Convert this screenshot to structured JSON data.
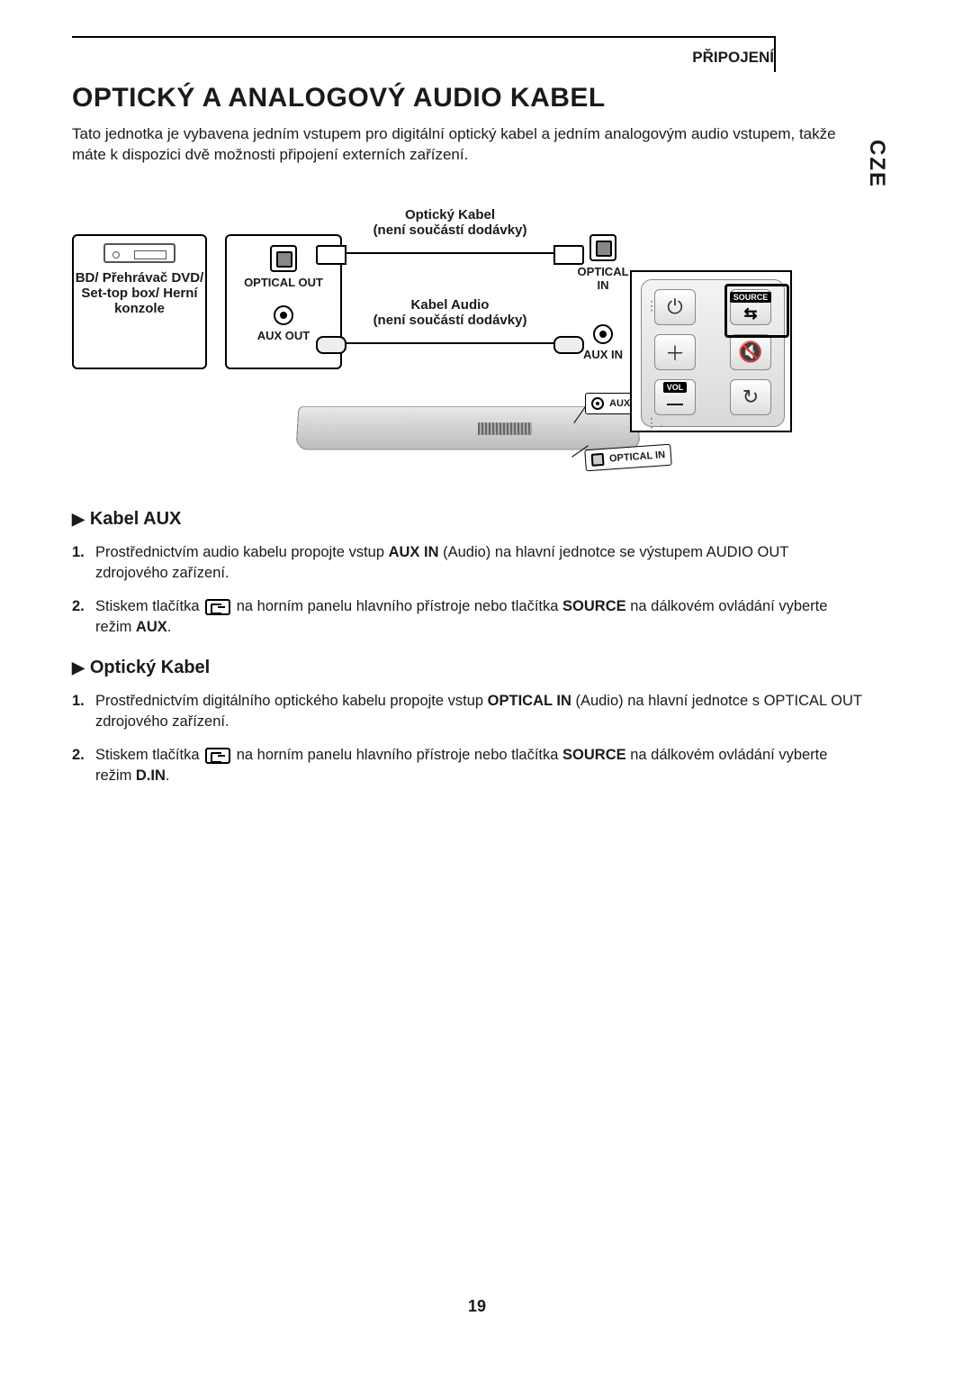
{
  "header": {
    "section_label": "PŘIPOJENÍ",
    "side_tab": "CZE"
  },
  "title": "OPTICKÝ A ANALOGOVÝ AUDIO KABEL",
  "intro": "Tato jednotka je vybavena jedním vstupem pro digitální optický kabel a jedním analogovým audio vstupem, takže máte k dispozici dvě možnosti připojení externích zařízení.",
  "diagram": {
    "source_device": "BD/ Přehrávač DVD/ Set-top box/ Herní konzole",
    "optical_out": "OPTICAL OUT",
    "aux_out": "AUX OUT",
    "optical_in": "OPTICAL IN",
    "aux_in": "AUX IN",
    "cable_optical_l1": "Optický Kabel",
    "cable_optical_l2": "(není součástí dodávky)",
    "cable_audio_l1": "Kabel Audio",
    "cable_audio_l2": "(není součástí dodávky)",
    "callout_aux": "AUX IN",
    "callout_opt": "OPTICAL IN",
    "remote": {
      "source_label": "SOURCE",
      "vol_label": "VOL"
    }
  },
  "section_aux": {
    "title": "Kabel AUX",
    "step1_a": "Prostřednictvím audio kabelu propojte vstup ",
    "step1_b": "AUX IN",
    "step1_c": " (Audio) na hlavní jednotce se výstupem AUDIO OUT zdrojového zařízení.",
    "step2_a": "Stiskem tlačítka ",
    "step2_b": " na horním panelu hlavního přístroje nebo tlačítka ",
    "step2_c": "SOURCE",
    "step2_d": " na dálkovém ovládání vyberte režim ",
    "step2_e": "AUX",
    "step2_f": "."
  },
  "section_opt": {
    "title": "Optický Kabel",
    "step1_a": "Prostřednictvím digitálního optického kabelu propojte vstup ",
    "step1_b": "OPTICAL IN",
    "step1_c": " (Audio) na hlavní jednotce s OPTICAL OUT zdrojového zařízení.",
    "step2_a": "Stiskem tlačítka ",
    "step2_b": " na horním panelu hlavního přístroje nebo tlačítka ",
    "step2_c": "SOURCE",
    "step2_d": " na dálkovém ovládání vyberte režim ",
    "step2_e": "D.IN",
    "step2_f": "."
  },
  "page_number": "19"
}
